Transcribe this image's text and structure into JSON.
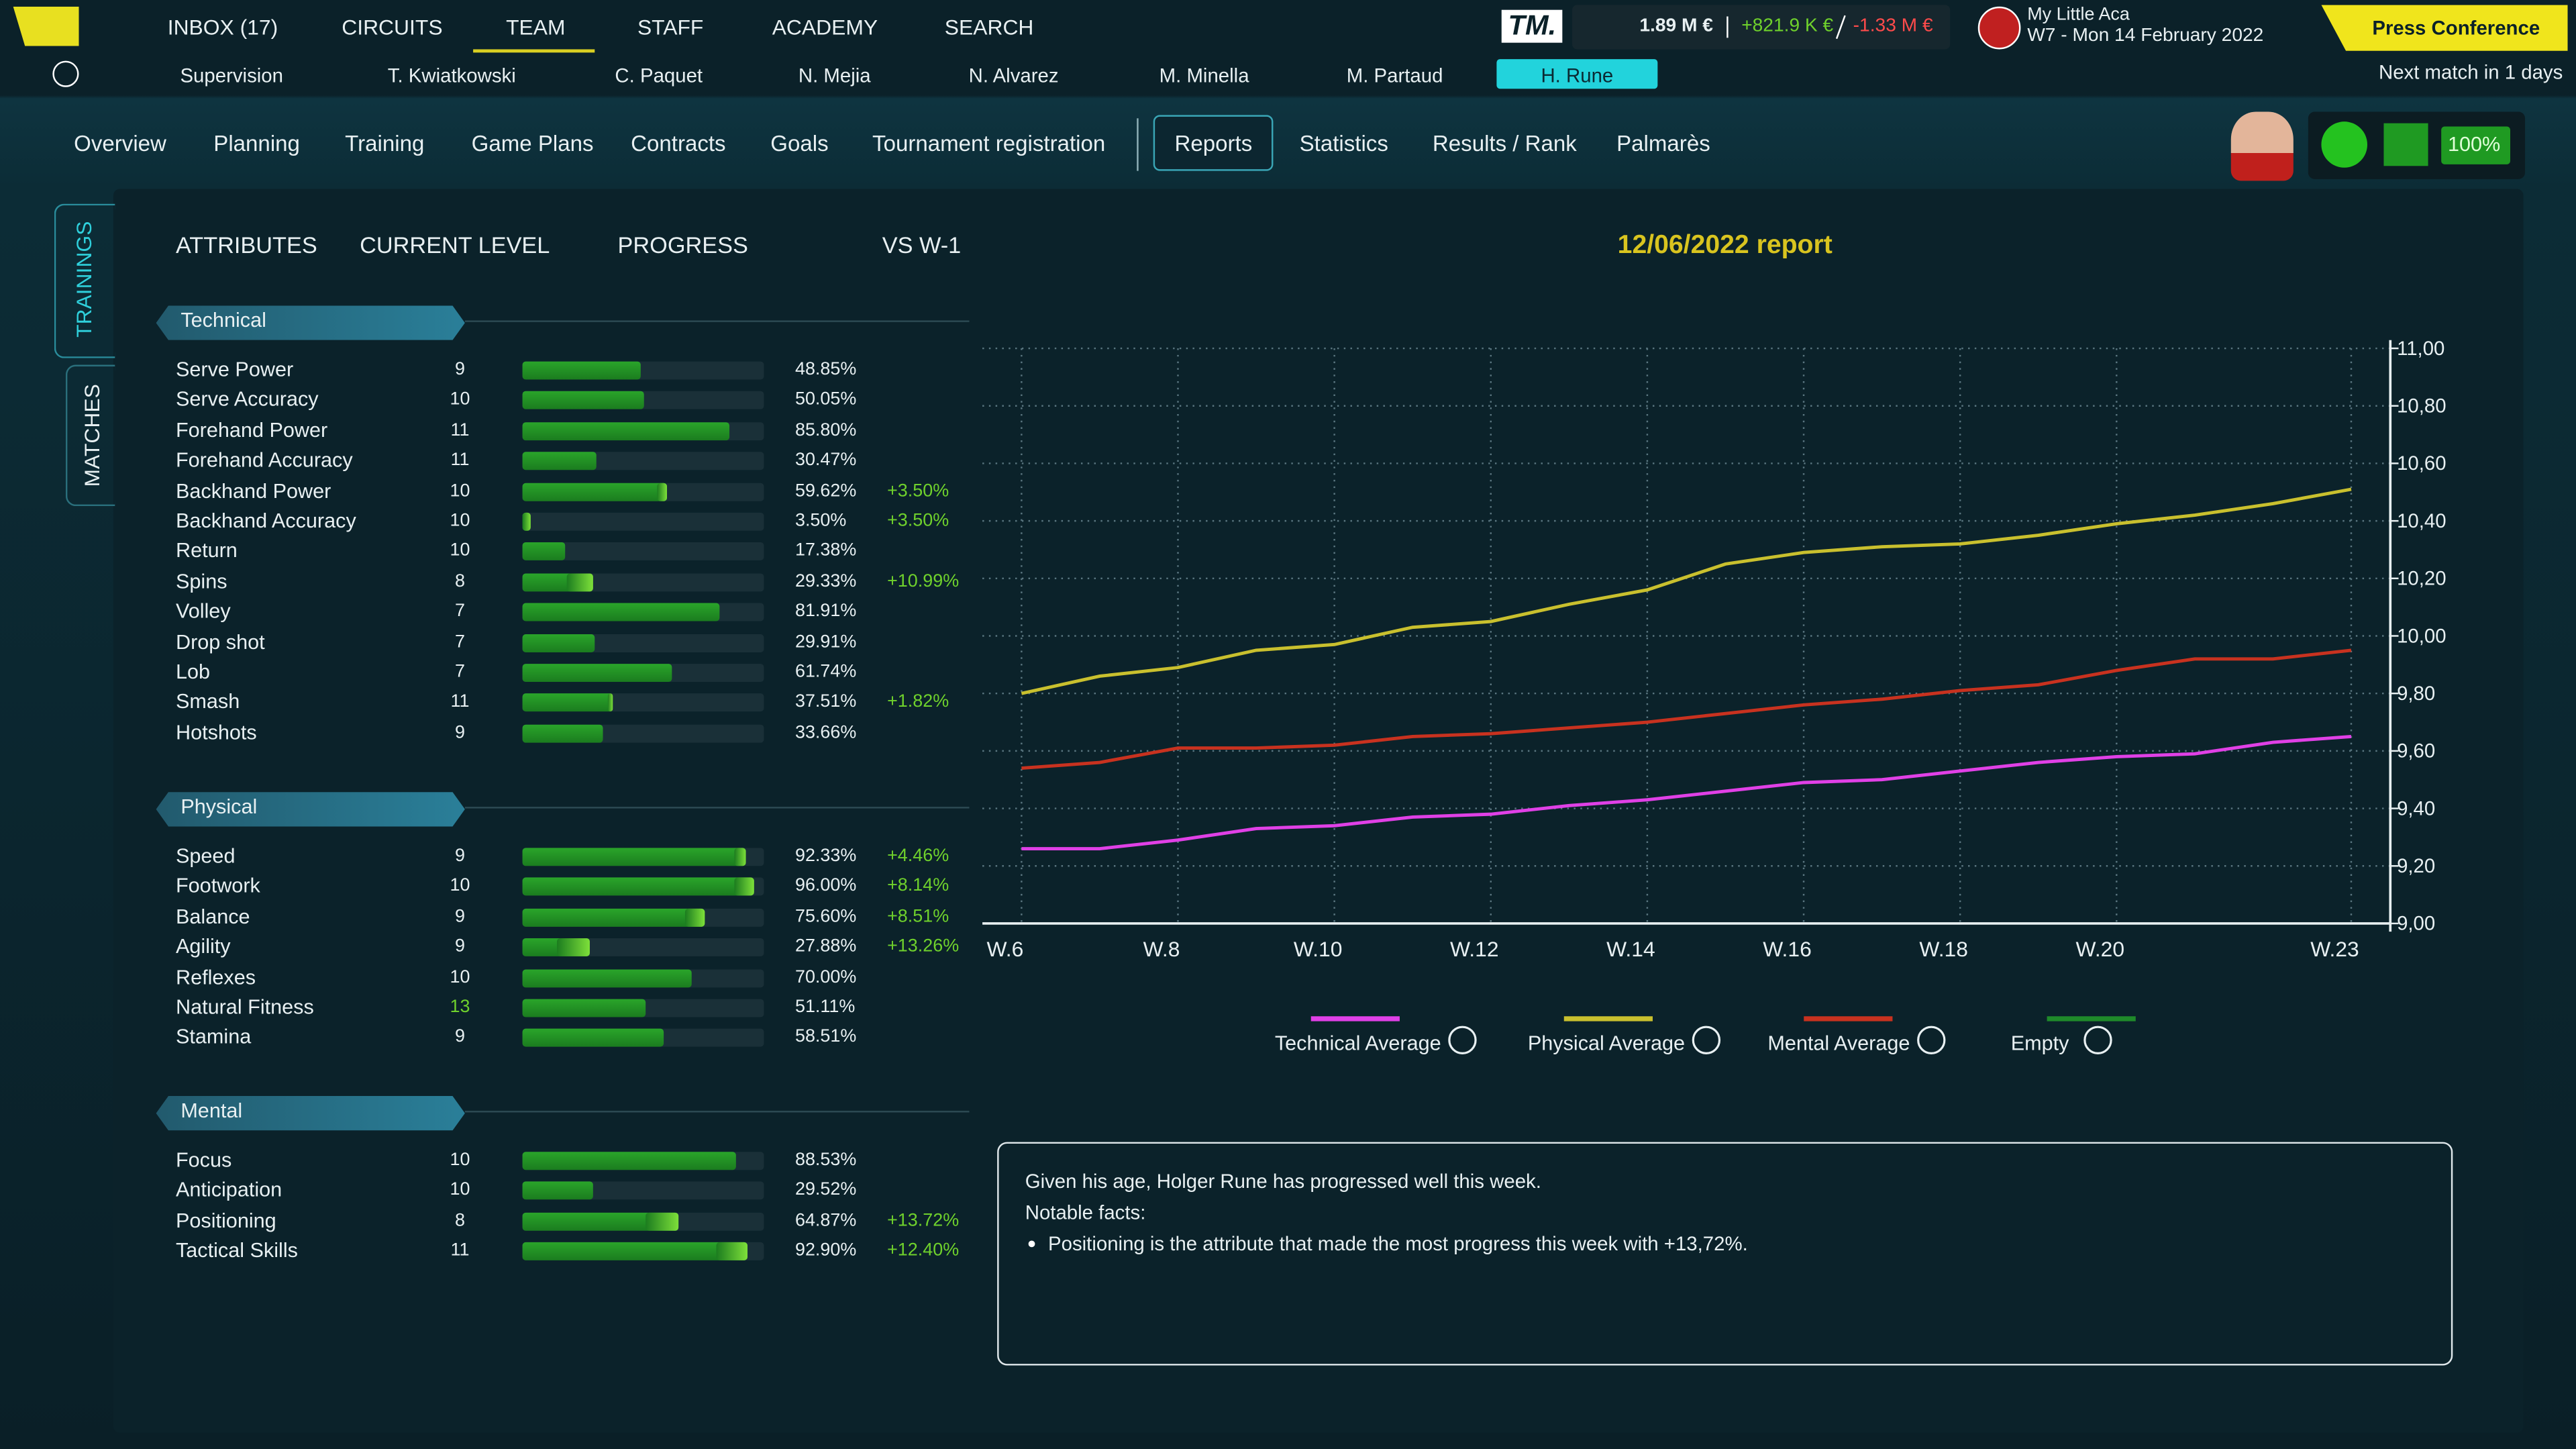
{
  "nav": {
    "tabs": [
      "INBOX (17)",
      "CIRCUITS",
      "TEAM",
      "STAFF",
      "ACADEMY",
      "SEARCH"
    ]
  },
  "logo": "TM.",
  "finance": {
    "budget": "1.89 M €",
    "income": "+821.9 K €",
    "expense": "-1.33 M €"
  },
  "club": {
    "name": "My Little Aca",
    "date": "W7 - Mon 14 February 2022"
  },
  "press_button": "Press Conference",
  "next_match": "Next match in 1 days",
  "players": [
    "Supervision",
    "T. Kwiatkowski",
    "C. Paquet",
    "N. Mejia",
    "N. Alvarez",
    "M. Minella",
    "M. Partaud",
    "H. Rune"
  ],
  "sections": [
    "Overview",
    "Planning",
    "Training",
    "Game Plans",
    "Contracts",
    "Goals",
    "Tournament registration",
    "Reports",
    "Statistics",
    "Results / Rank",
    "Palmarès"
  ],
  "status": {
    "form": "100%"
  },
  "side_tabs": [
    "TRAININGS",
    "MATCHES"
  ],
  "columns": [
    "ATTRIBUTES",
    "CURRENT LEVEL",
    "PROGRESS",
    "VS W-1"
  ],
  "groups": [
    {
      "title": "Technical",
      "rows": [
        {
          "name": "Serve Power",
          "level": 9,
          "progress": 48.85,
          "progress_label": "48.85%"
        },
        {
          "name": "Serve Accuracy",
          "level": 10,
          "progress": 50.05,
          "progress_label": "50.05%"
        },
        {
          "name": "Forehand Power",
          "level": 11,
          "progress": 85.8,
          "progress_label": "85.80%"
        },
        {
          "name": "Forehand Accuracy",
          "level": 11,
          "progress": 30.47,
          "progress_label": "30.47%"
        },
        {
          "name": "Backhand Power",
          "level": 10,
          "progress": 59.62,
          "progress_label": "59.62%",
          "vs": 3.5,
          "vs_label": "+3.50%"
        },
        {
          "name": "Backhand Accuracy",
          "level": 10,
          "progress": 3.5,
          "progress_label": "3.50%",
          "vs": 3.5,
          "vs_label": "+3.50%"
        },
        {
          "name": "Return",
          "level": 10,
          "progress": 17.38,
          "progress_label": "17.38%"
        },
        {
          "name": "Spins",
          "level": 8,
          "progress": 29.33,
          "progress_label": "29.33%",
          "vs": 10.99,
          "vs_label": "+10.99%"
        },
        {
          "name": "Volley",
          "level": 7,
          "progress": 81.91,
          "progress_label": "81.91%"
        },
        {
          "name": "Drop shot",
          "level": 7,
          "progress": 29.91,
          "progress_label": "29.91%"
        },
        {
          "name": "Lob",
          "level": 7,
          "progress": 61.74,
          "progress_label": "61.74%"
        },
        {
          "name": "Smash",
          "level": 11,
          "progress": 37.51,
          "progress_label": "37.51%",
          "vs": 1.82,
          "vs_label": "+1.82%"
        },
        {
          "name": "Hotshots",
          "level": 9,
          "progress": 33.66,
          "progress_label": "33.66%"
        }
      ]
    },
    {
      "title": "Physical",
      "rows": [
        {
          "name": "Speed",
          "level": 9,
          "progress": 92.33,
          "progress_label": "92.33%",
          "vs": 4.46,
          "vs_label": "+4.46%"
        },
        {
          "name": "Footwork",
          "level": 10,
          "progress": 96.0,
          "progress_label": "96.00%",
          "vs": 8.14,
          "vs_label": "+8.14%"
        },
        {
          "name": "Balance",
          "level": 9,
          "progress": 75.6,
          "progress_label": "75.60%",
          "vs": 8.51,
          "vs_label": "+8.51%"
        },
        {
          "name": "Agility",
          "level": 9,
          "progress": 27.88,
          "progress_label": "27.88%",
          "vs": 13.26,
          "vs_label": "+13.26%"
        },
        {
          "name": "Reflexes",
          "level": 10,
          "progress": 70.0,
          "progress_label": "70.00%"
        },
        {
          "name": "Natural Fitness",
          "level": 13,
          "progress": 51.11,
          "progress_label": "51.11%"
        },
        {
          "name": "Stamina",
          "level": 9,
          "progress": 58.51,
          "progress_label": "58.51%"
        }
      ]
    },
    {
      "title": "Mental",
      "rows": [
        {
          "name": "Focus",
          "level": 10,
          "progress": 88.53,
          "progress_label": "88.53%"
        },
        {
          "name": "Anticipation",
          "level": 10,
          "progress": 29.52,
          "progress_label": "29.52%"
        },
        {
          "name": "Positioning",
          "level": 8,
          "progress": 64.87,
          "progress_label": "64.87%",
          "vs": 13.72,
          "vs_label": "+13.72%"
        },
        {
          "name": "Tactical Skills",
          "level": 11,
          "progress": 92.9,
          "progress_label": "92.90%",
          "vs": 12.4,
          "vs_label": "+12.40%"
        }
      ]
    }
  ],
  "report": {
    "title": "12/06/2022 report",
    "summary": "Given his age, Holger Rune has progressed well this week.",
    "notable": "Notable facts:",
    "facts": [
      "Positioning is the attribute that made the most progress this week with +13,72%."
    ]
  },
  "chart": {
    "type": "line",
    "x": [
      6,
      7,
      8,
      9,
      10,
      11,
      12,
      13,
      14,
      15,
      16,
      17,
      18,
      19,
      20,
      21,
      22,
      23
    ],
    "xlim": [
      5.5,
      23.5
    ],
    "xticks": [
      {
        "value": 6,
        "label": "W.6"
      },
      {
        "value": 8,
        "label": "W.8"
      },
      {
        "value": 10,
        "label": "W.10"
      },
      {
        "value": 12,
        "label": "W.12"
      },
      {
        "value": 14,
        "label": "W.14"
      },
      {
        "value": 16,
        "label": "W.16"
      },
      {
        "value": 18,
        "label": "W.18"
      },
      {
        "value": 20,
        "label": "W.20"
      },
      {
        "value": 23,
        "label": "W.23"
      }
    ],
    "ylim": [
      9,
      11
    ],
    "yticks": [
      {
        "value": 9,
        "label": "9,00"
      },
      {
        "value": 9.2,
        "label": "9,20"
      },
      {
        "value": 9.4,
        "label": "9,40"
      },
      {
        "value": 9.6,
        "label": "9,60"
      },
      {
        "value": 9.8,
        "label": "9,80"
      },
      {
        "value": 10,
        "label": "10,00"
      },
      {
        "value": 10.2,
        "label": "10,20"
      },
      {
        "value": 10.4,
        "label": "10,40"
      },
      {
        "value": 10.6,
        "label": "10,60"
      },
      {
        "value": 10.8,
        "label": "10,80"
      },
      {
        "value": 11,
        "label": "11,00"
      }
    ],
    "grid": true,
    "series": [
      {
        "name": "Technical Average",
        "color": "#e040e6",
        "values": [
          9.26,
          9.26,
          9.29,
          9.33,
          9.34,
          9.37,
          9.38,
          9.41,
          9.43,
          9.46,
          9.49,
          9.5,
          9.53,
          9.56,
          9.58,
          9.59,
          9.63,
          9.65
        ]
      },
      {
        "name": "Physical Average",
        "color": "#c9c02e",
        "values": [
          9.8,
          9.86,
          9.89,
          9.95,
          9.97,
          10.03,
          10.05,
          10.11,
          10.16,
          10.25,
          10.29,
          10.31,
          10.32,
          10.35,
          10.39,
          10.42,
          10.46,
          10.51
        ]
      },
      {
        "name": "Mental Average",
        "color": "#c8321f",
        "values": [
          9.54,
          9.56,
          9.61,
          9.61,
          9.62,
          9.65,
          9.66,
          9.68,
          9.7,
          9.73,
          9.76,
          9.78,
          9.81,
          9.83,
          9.88,
          9.92,
          9.92,
          9.95
        ]
      },
      {
        "name": "Empty",
        "color": "#1f8a2a",
        "values": []
      }
    ]
  }
}
